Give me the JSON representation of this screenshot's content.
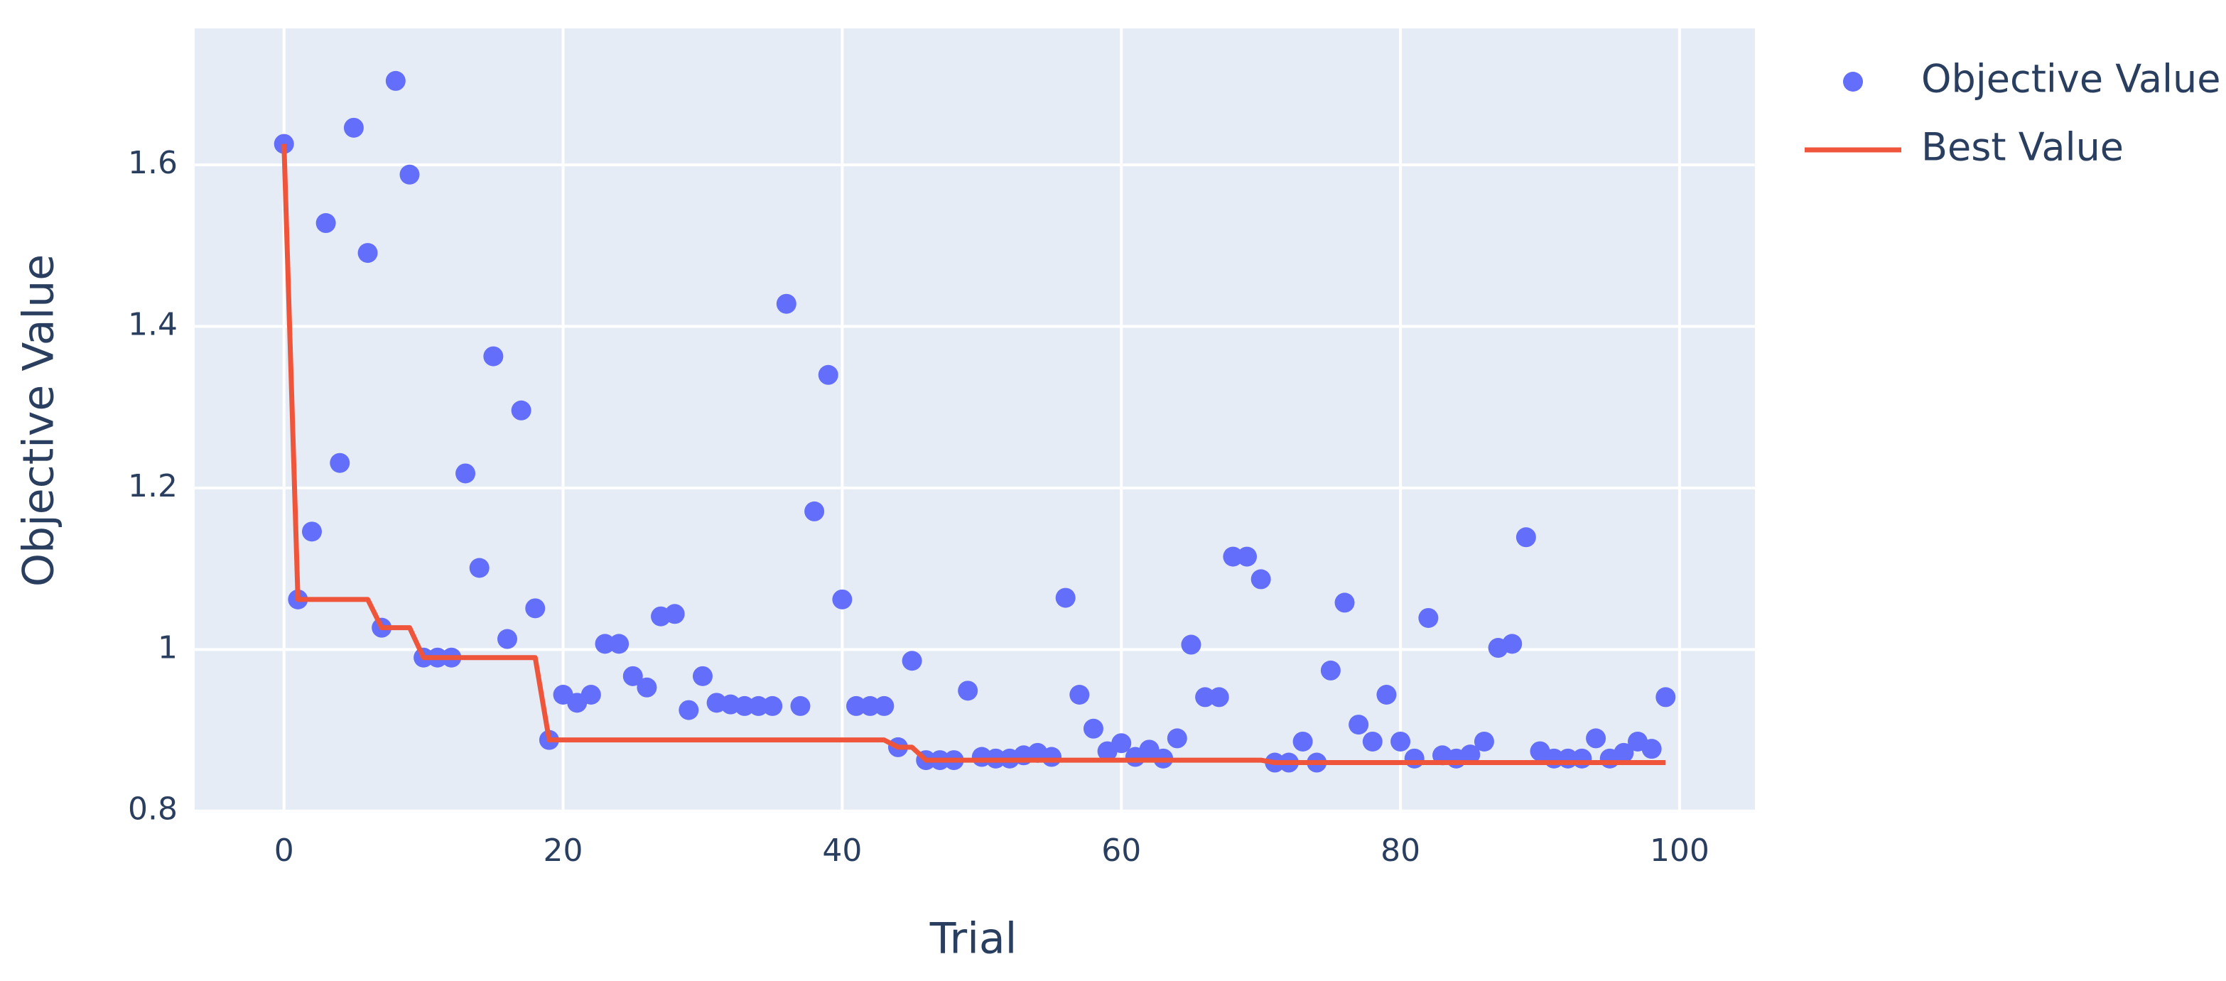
{
  "chart_data": {
    "type": "scatter",
    "x_label": "Trial",
    "y_label": "Objective Value",
    "x": [
      0,
      1,
      2,
      3,
      4,
      5,
      6,
      7,
      8,
      9,
      10,
      11,
      12,
      13,
      14,
      15,
      16,
      17,
      18,
      19,
      20,
      21,
      22,
      23,
      24,
      25,
      26,
      27,
      28,
      29,
      30,
      31,
      32,
      33,
      34,
      35,
      36,
      37,
      38,
      39,
      40,
      41,
      42,
      43,
      44,
      45,
      46,
      47,
      48,
      49,
      50,
      51,
      52,
      53,
      54,
      55,
      56,
      57,
      58,
      59,
      60,
      61,
      62,
      63,
      64,
      65,
      66,
      67,
      68,
      69,
      70,
      71,
      72,
      73,
      74,
      75,
      76,
      77,
      78,
      79,
      80,
      81,
      82,
      83,
      84,
      85,
      86,
      87,
      88,
      89,
      90,
      91,
      92,
      93,
      94,
      95,
      96,
      97,
      98,
      99
    ],
    "series": [
      {
        "name": "Objective Value",
        "mode": "markers",
        "color": "#636efa",
        "values": [
          1.626,
          1.062,
          1.146,
          1.528,
          1.231,
          1.646,
          1.491,
          1.027,
          1.704,
          1.588,
          0.99,
          0.99,
          0.99,
          1.218,
          1.101,
          1.363,
          1.013,
          1.296,
          1.051,
          0.888,
          0.944,
          0.934,
          0.944,
          1.007,
          1.007,
          0.967,
          0.953,
          1.041,
          1.044,
          0.925,
          0.967,
          0.934,
          0.932,
          0.93,
          0.93,
          0.93,
          1.428,
          0.93,
          1.171,
          1.34,
          1.062,
          0.93,
          0.93,
          0.93,
          0.879,
          0.986,
          0.863,
          0.863,
          0.863,
          0.949,
          0.867,
          0.865,
          0.865,
          0.869,
          0.872,
          0.867,
          1.064,
          0.944,
          0.902,
          0.874,
          0.884,
          0.867,
          0.876,
          0.865,
          0.89,
          1.006,
          0.941,
          0.941,
          1.115,
          1.115,
          1.087,
          0.86,
          0.86,
          0.886,
          0.86,
          0.974,
          1.058,
          0.907,
          0.886,
          0.944,
          0.886,
          0.865,
          1.039,
          0.869,
          0.865,
          0.87,
          0.886,
          1.002,
          1.007,
          1.139,
          0.874,
          0.865,
          0.865,
          0.865,
          0.89,
          0.865,
          0.872,
          0.886,
          0.877,
          0.941
        ]
      },
      {
        "name": "Best Value",
        "mode": "lines",
        "color": "#ef553b",
        "values": [
          1.626,
          1.062,
          1.062,
          1.062,
          1.062,
          1.062,
          1.062,
          1.027,
          1.027,
          1.027,
          0.99,
          0.99,
          0.99,
          0.99,
          0.99,
          0.99,
          0.99,
          0.99,
          0.99,
          0.888,
          0.888,
          0.888,
          0.888,
          0.888,
          0.888,
          0.888,
          0.888,
          0.888,
          0.888,
          0.888,
          0.888,
          0.888,
          0.888,
          0.888,
          0.888,
          0.888,
          0.888,
          0.888,
          0.888,
          0.888,
          0.888,
          0.888,
          0.888,
          0.888,
          0.879,
          0.879,
          0.863,
          0.863,
          0.863,
          0.863,
          0.863,
          0.863,
          0.863,
          0.863,
          0.863,
          0.863,
          0.863,
          0.863,
          0.863,
          0.863,
          0.863,
          0.863,
          0.863,
          0.863,
          0.863,
          0.863,
          0.863,
          0.863,
          0.863,
          0.863,
          0.863,
          0.86,
          0.86,
          0.86,
          0.86,
          0.86,
          0.86,
          0.86,
          0.86,
          0.86,
          0.86,
          0.86,
          0.86,
          0.86,
          0.86,
          0.86,
          0.86,
          0.86,
          0.86,
          0.86,
          0.86,
          0.86,
          0.86,
          0.86,
          0.86,
          0.86,
          0.86,
          0.86,
          0.86,
          0.86
        ]
      }
    ],
    "xlim": [
      -6.4,
      105.4
    ],
    "xticks": [
      0,
      20,
      40,
      60,
      80,
      100
    ],
    "ylim": [
      0.798,
      1.769
    ],
    "yticks": [
      0.8,
      1,
      1.2,
      1.4,
      1.6
    ],
    "grid": true,
    "legend": "right",
    "plot_background": "#e5ecf6"
  }
}
